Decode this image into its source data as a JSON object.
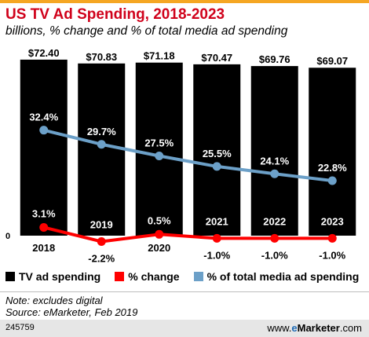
{
  "title": "US TV Ad Spending, 2018-2023",
  "subtitle": "billions, % change and % of total media ad spending",
  "chart_data": {
    "type": "bar",
    "categories": [
      "2018",
      "2019",
      "2020",
      "2021",
      "2022",
      "2023"
    ],
    "zero_label": "0",
    "series": [
      {
        "name": "TV ad spending",
        "type": "bar",
        "color": "#000000",
        "values": [
          72.4,
          70.83,
          71.18,
          70.47,
          69.76,
          69.07
        ],
        "labels": [
          "$72.40",
          "$70.83",
          "$71.18",
          "$70.47",
          "$69.76",
          "$69.07"
        ]
      },
      {
        "name": "% change",
        "type": "line",
        "color": "#ff0000",
        "values": [
          3.1,
          -2.2,
          0.5,
          -1.0,
          -1.0,
          -1.0
        ],
        "labels": [
          "3.1%",
          "-2.2%",
          "0.5%",
          "-1.0%",
          "-1.0%",
          "-1.0%"
        ]
      },
      {
        "name": "% of total media ad spending",
        "type": "line",
        "color": "#6ca0c8",
        "values": [
          32.4,
          29.7,
          27.5,
          25.5,
          24.1,
          22.8
        ],
        "labels": [
          "32.4%",
          "29.7%",
          "27.5%",
          "25.5%",
          "24.1%",
          "22.8%"
        ]
      }
    ]
  },
  "legend": [
    {
      "label": "TV ad spending",
      "color": "#000000"
    },
    {
      "label": "% change",
      "color": "#ff0000"
    },
    {
      "label": "% of total media ad spending",
      "color": "#6ca0c8"
    }
  ],
  "note": "Note: excludes digital",
  "source": "Source: eMarketer, Feb 2019",
  "footer": {
    "chart_id": "245759",
    "brand_prefix": "www.",
    "brand_e": "e",
    "brand_main": "Marketer",
    "brand_suffix": ".com"
  },
  "colors": {
    "accent_bar": "#f5a623",
    "title": "#d0021b"
  }
}
